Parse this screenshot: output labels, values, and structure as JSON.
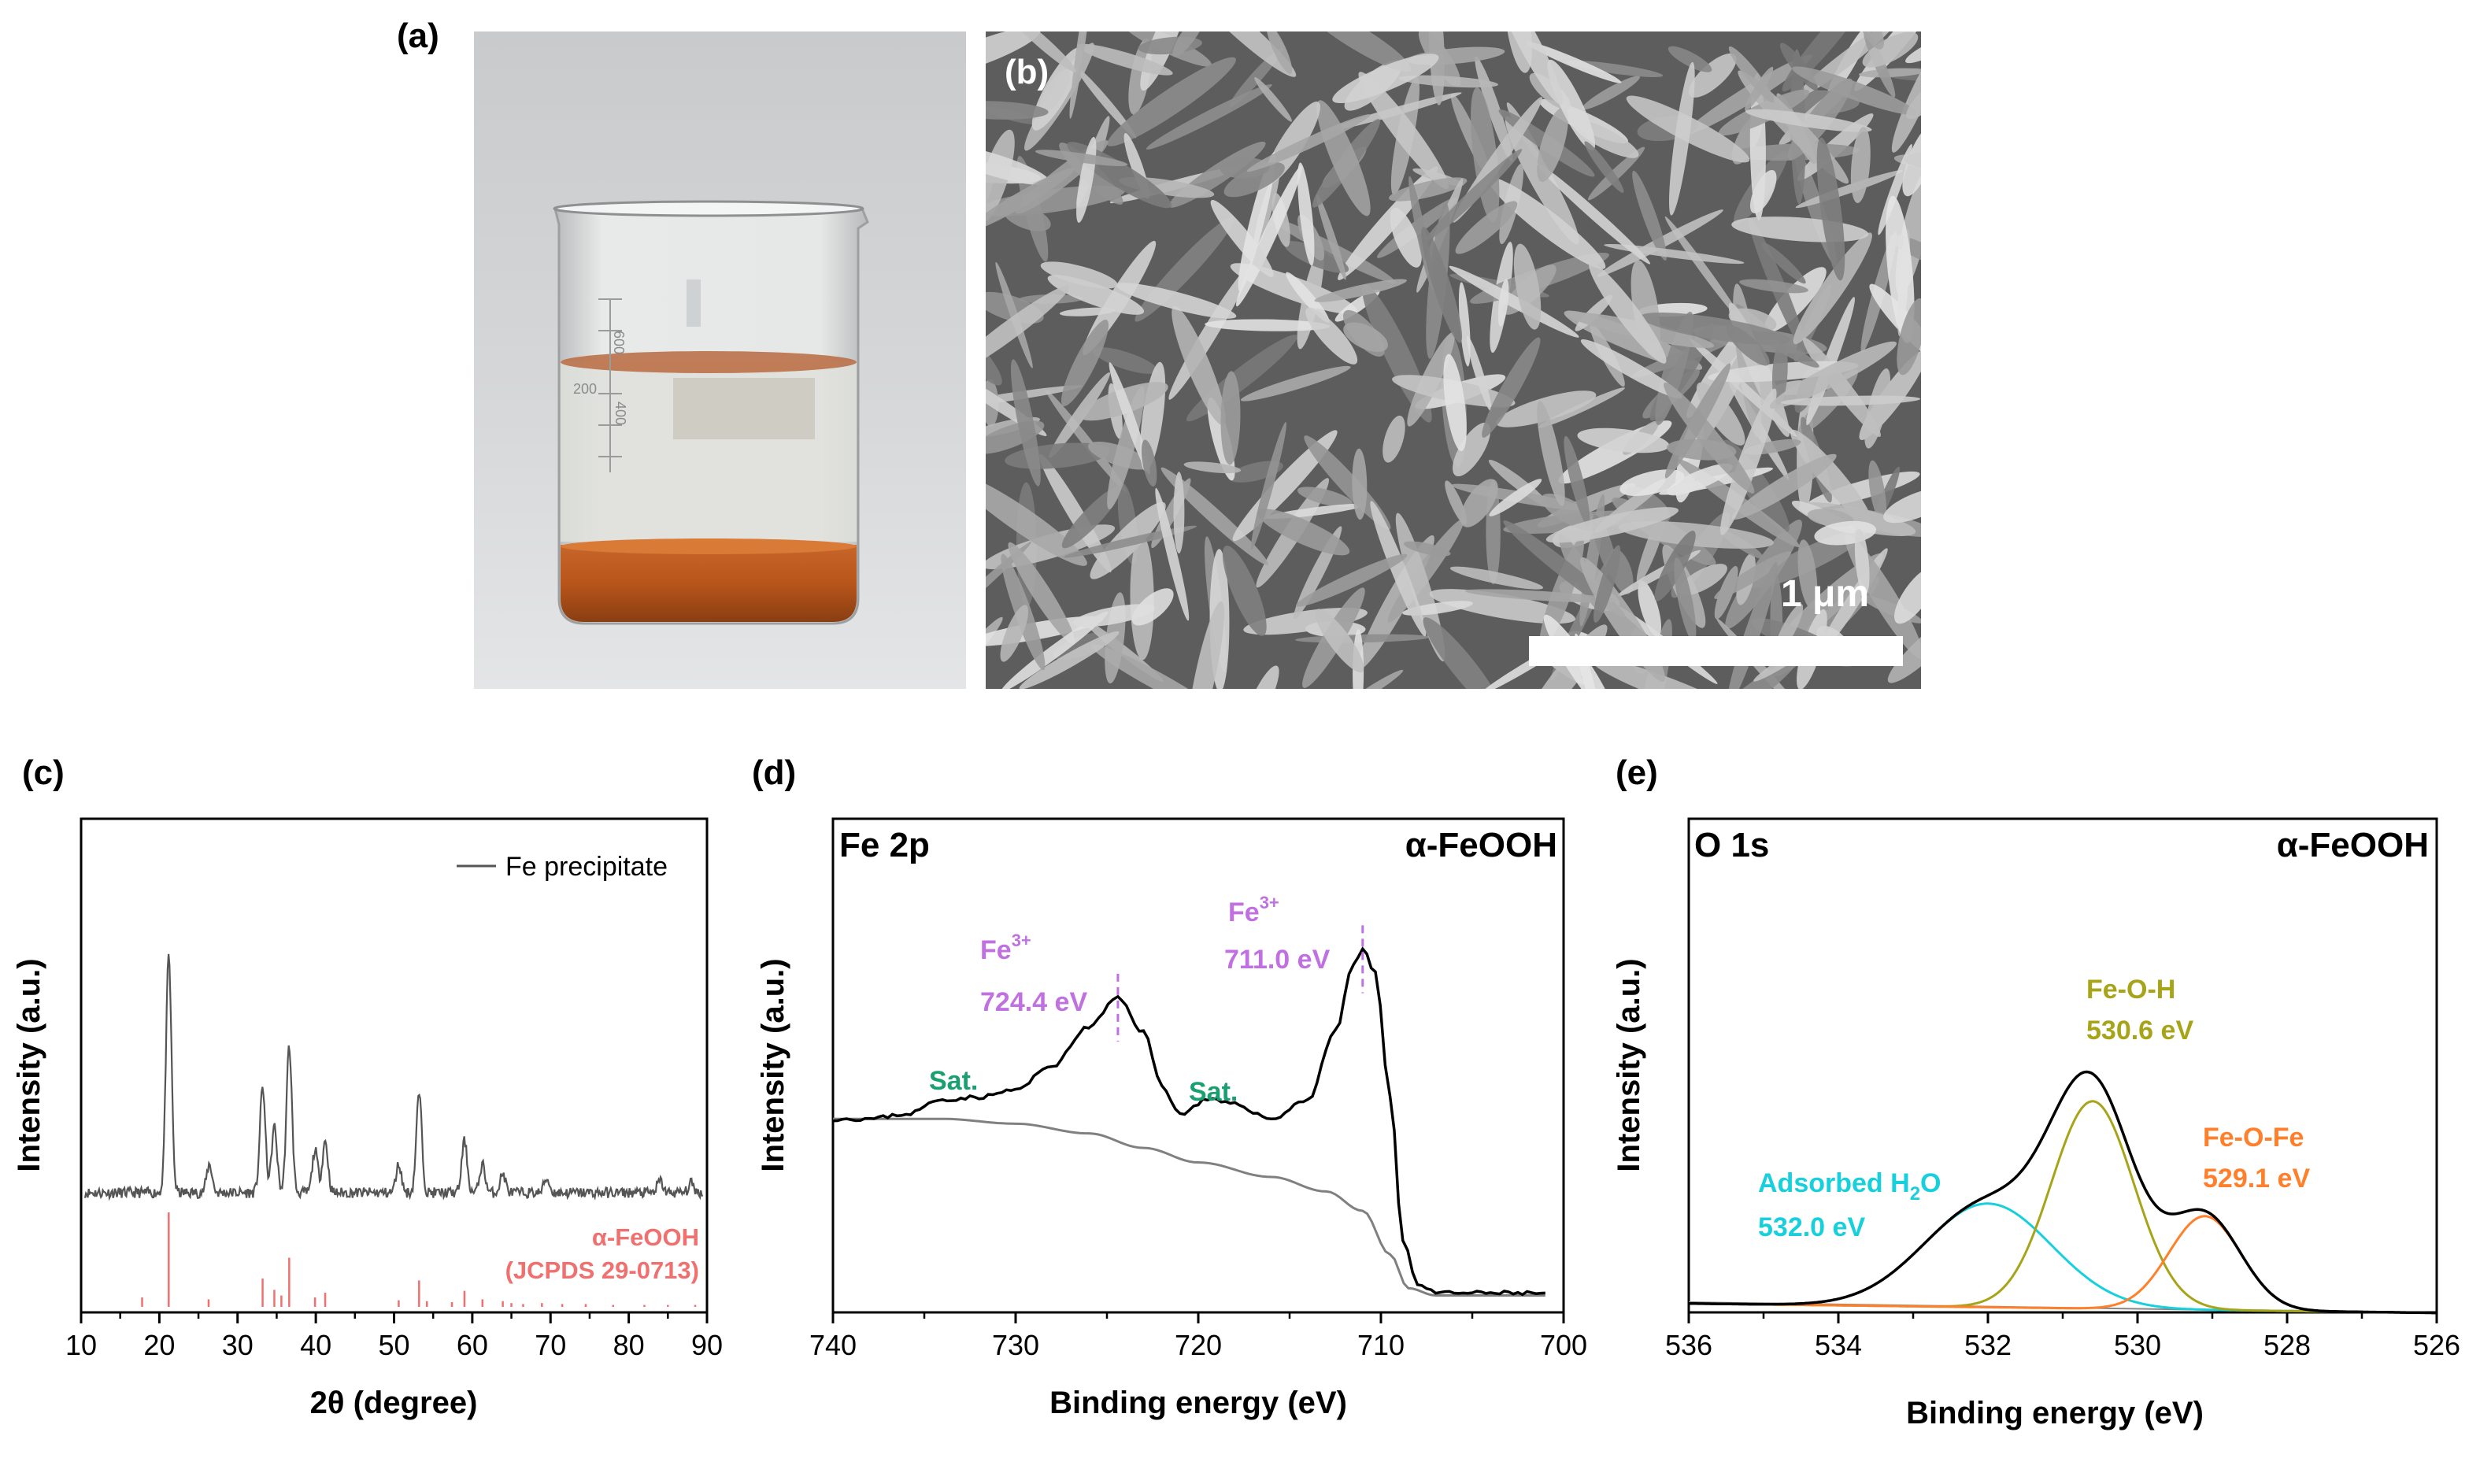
{
  "panels": {
    "a": {
      "label": "(a)"
    },
    "b": {
      "label": "(b)",
      "scalebar": "1 μm"
    },
    "c": {
      "label": "(c)"
    },
    "d": {
      "label": "(d)"
    },
    "e": {
      "label": "(e)"
    }
  },
  "beaker": {
    "marks": [
      "600",
      "400",
      "200"
    ]
  },
  "chart_data": [
    {
      "id": "c",
      "type": "line",
      "xlabel": "2θ (degree)",
      "ylabel": "Intensity (a.u.)",
      "xlim": [
        10,
        90
      ],
      "xticks": [
        "10",
        "20",
        "30",
        "40",
        "50",
        "60",
        "70",
        "80",
        "90"
      ],
      "legend": "Fe precipitate",
      "reference_label": "α-FeOOH",
      "reference_card": "(JCPDS 29-0713)",
      "series": [
        {
          "name": "Fe precipitate",
          "color": "#555555",
          "peaks": [
            [
              21.2,
              1.0
            ],
            [
              26.4,
              0.12
            ],
            [
              33.2,
              0.45
            ],
            [
              34.7,
              0.28
            ],
            [
              36.6,
              0.62
            ],
            [
              39.9,
              0.18
            ],
            [
              41.2,
              0.22
            ],
            [
              50.6,
              0.12
            ],
            [
              53.2,
              0.42
            ],
            [
              59.0,
              0.22
            ],
            [
              61.3,
              0.12
            ],
            [
              63.9,
              0.08
            ],
            [
              69.5,
              0.06
            ],
            [
              84.0,
              0.05
            ],
            [
              88.0,
              0.04
            ]
          ]
        }
      ],
      "reference_lines": {
        "color": "#f07070",
        "peaks": [
          [
            17.8,
            0.1
          ],
          [
            21.2,
            1.0
          ],
          [
            26.3,
            0.08
          ],
          [
            33.2,
            0.3
          ],
          [
            34.7,
            0.18
          ],
          [
            35.6,
            0.12
          ],
          [
            36.6,
            0.52
          ],
          [
            39.9,
            0.1
          ],
          [
            41.2,
            0.15
          ],
          [
            50.6,
            0.07
          ],
          [
            53.2,
            0.28
          ],
          [
            54.2,
            0.06
          ],
          [
            57.4,
            0.05
          ],
          [
            59.0,
            0.17
          ],
          [
            61.3,
            0.08
          ],
          [
            63.9,
            0.06
          ],
          [
            65.0,
            0.04
          ],
          [
            66.5,
            0.03
          ],
          [
            68.9,
            0.04
          ],
          [
            71.5,
            0.03
          ],
          [
            74.5,
            0.03
          ],
          [
            78.0,
            0.02
          ],
          [
            82.0,
            0.02
          ],
          [
            85.0,
            0.02
          ],
          [
            88.5,
            0.02
          ]
        ]
      }
    },
    {
      "id": "d",
      "type": "line",
      "xlabel": "Binding energy (eV)",
      "ylabel": "Intensity (a.u.)",
      "xlim": [
        740,
        700
      ],
      "xticks": [
        "740",
        "730",
        "720",
        "710",
        "700"
      ],
      "title_left": "Fe 2p",
      "title_right": "α-FeOOH",
      "series": [
        {
          "name": "spectrum",
          "color": "#000000",
          "points": [
            [
              740,
              0.4
            ],
            [
              738,
              0.4
            ],
            [
              736,
              0.41
            ],
            [
              734,
              0.44
            ],
            [
              732,
              0.445
            ],
            [
              730,
              0.46
            ],
            [
              728,
              0.51
            ],
            [
              726,
              0.59
            ],
            [
              724.4,
              0.65
            ],
            [
              723,
              0.58
            ],
            [
              722,
              0.47
            ],
            [
              721,
              0.41
            ],
            [
              719.5,
              0.44
            ],
            [
              718,
              0.43
            ],
            [
              716,
              0.4
            ],
            [
              714,
              0.44
            ],
            [
              712.5,
              0.58
            ],
            [
              711.5,
              0.72
            ],
            [
              711.0,
              0.75
            ],
            [
              710.3,
              0.7
            ],
            [
              709.5,
              0.45
            ],
            [
              708.8,
              0.15
            ],
            [
              708,
              0.06
            ],
            [
              707,
              0.04
            ],
            [
              704,
              0.04
            ],
            [
              701,
              0.04
            ]
          ]
        },
        {
          "name": "background",
          "color": "#808080",
          "points": [
            [
              740,
              0.4
            ],
            [
              734,
              0.4
            ],
            [
              730,
              0.39
            ],
            [
              726,
              0.37
            ],
            [
              723,
              0.34
            ],
            [
              720,
              0.31
            ],
            [
              716,
              0.28
            ],
            [
              713,
              0.25
            ],
            [
              711,
              0.21
            ],
            [
              709.5,
              0.12
            ],
            [
              708.5,
              0.05
            ],
            [
              707,
              0.035
            ],
            [
              704,
              0.035
            ],
            [
              701,
              0.035
            ]
          ]
        }
      ],
      "annotations": [
        {
          "ion": "Fe",
          "charge": "3+",
          "value": "724.4 eV",
          "x": 724.4,
          "color": "#c070e0"
        },
        {
          "ion": "Fe",
          "charge": "3+",
          "value": "711.0 eV",
          "x": 711.0,
          "color": "#c070e0"
        },
        {
          "text": "Sat.",
          "x": 732.5,
          "color": "#1aa070"
        },
        {
          "text": "Sat.",
          "x": 719.5,
          "color": "#1aa070"
        }
      ]
    },
    {
      "id": "e",
      "type": "line",
      "xlabel": "Binding energy (eV)",
      "ylabel": "Intensity (a.u.)",
      "xlim": [
        536,
        526
      ],
      "xticks": [
        "536",
        "534",
        "532",
        "530",
        "528",
        "526"
      ],
      "title_left": "O 1s",
      "title_right": "α-FeOOH",
      "components": [
        {
          "name": "Adsorbed H2O",
          "center": 532.0,
          "amplitude": 0.21,
          "sigma": 0.85,
          "color": "#17d0dc"
        },
        {
          "name": "Fe-O-H",
          "center": 530.6,
          "amplitude": 0.42,
          "sigma": 0.55,
          "color": "#a8a41a"
        },
        {
          "name": "Fe-O-Fe",
          "center": 529.1,
          "amplitude": 0.19,
          "sigma": 0.48,
          "color": "#ff7f2a"
        }
      ],
      "envelope_color": "#000000",
      "labels": {
        "h2o_pre": "Adsorbed H",
        "h2o_sub": "2",
        "h2o_post": "O",
        "h2o_value": "532.0 eV",
        "feoh": "Fe-O-H",
        "feoh_value": "530.6 eV",
        "fefe": "Fe-O-Fe",
        "fefe_value": "529.1 eV"
      }
    }
  ]
}
